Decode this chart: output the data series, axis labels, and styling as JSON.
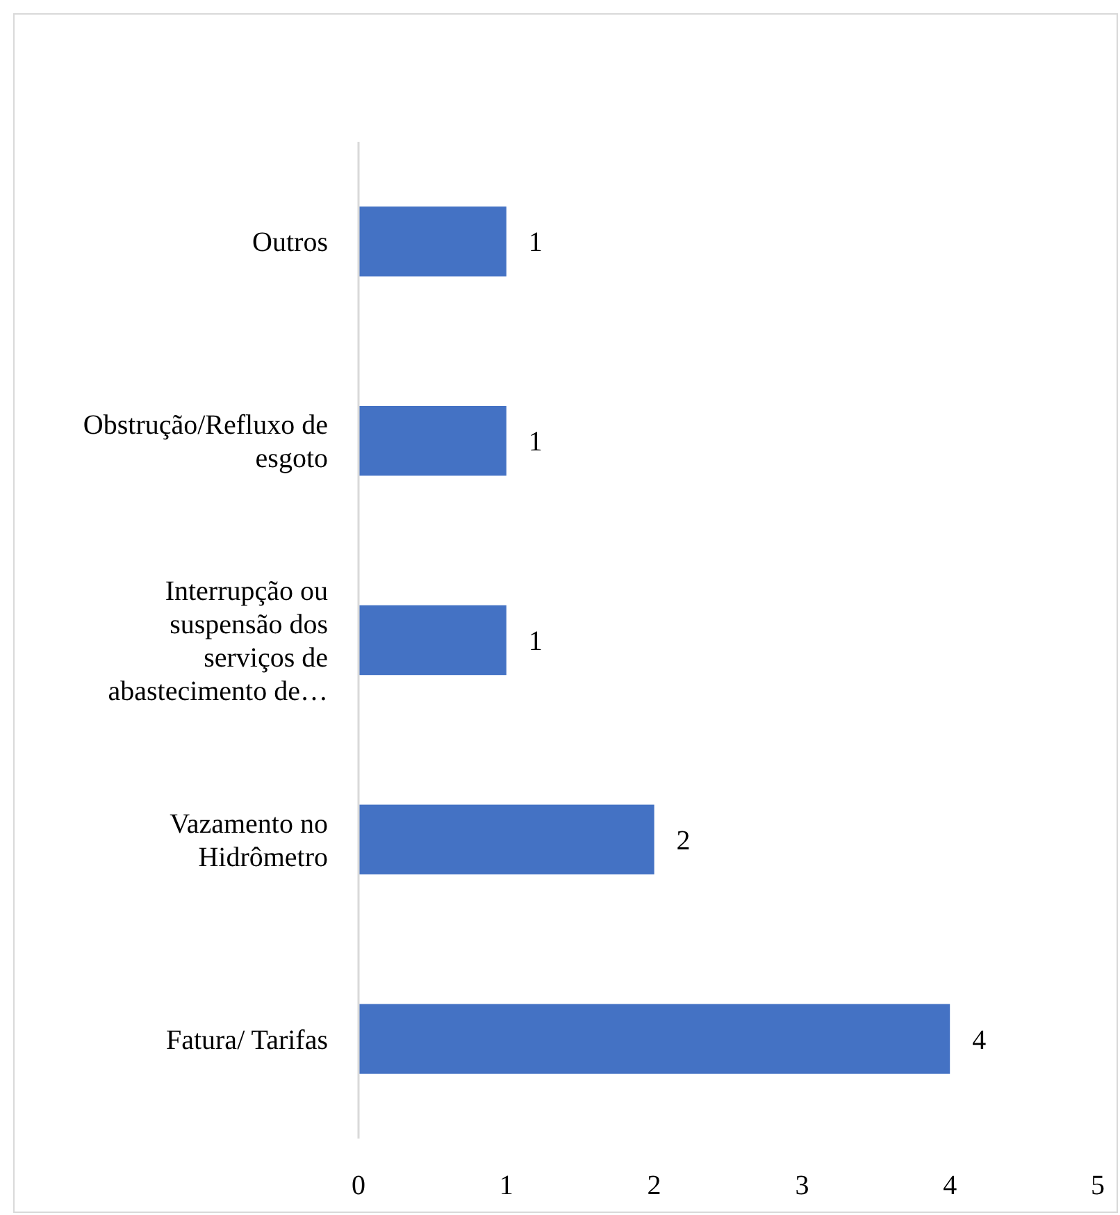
{
  "chart_data": {
    "type": "bar",
    "orientation": "horizontal",
    "categories": [
      "Outros",
      "Obstrução/Refluxo de esgoto",
      "Interrupção ou suspensão dos serviços de abastecimento de…",
      "Vazamento no Hidrômetro",
      "Fatura/ Tarifas"
    ],
    "values": [
      1,
      1,
      1,
      2,
      4
    ],
    "color": "#4472c4",
    "xlim": [
      0,
      5
    ],
    "xticks": [
      0,
      1,
      2,
      3,
      4,
      5
    ],
    "grid": false,
    "data_labels": true
  }
}
